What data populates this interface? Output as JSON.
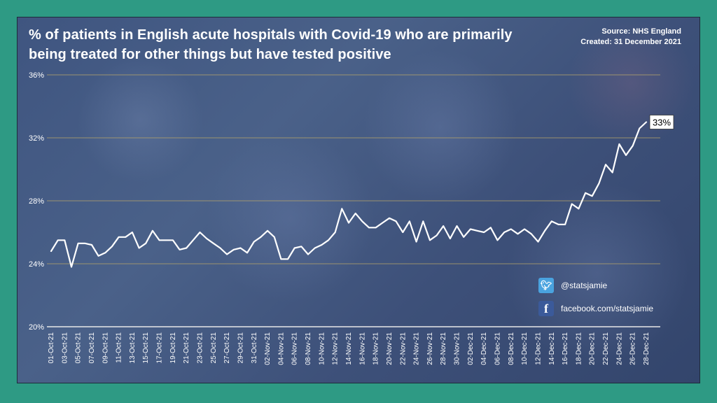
{
  "chart_data": {
    "type": "line",
    "title": "% of patients in English acute hospitals with Covid-19 who are primarily being treated for other things but have tested positive",
    "source": "Source: NHS England",
    "created": "Created: 31 December 2021",
    "xlabel": "",
    "ylabel": "",
    "ylim": [
      20,
      36
    ],
    "yticks": [
      20,
      24,
      28,
      32,
      36
    ],
    "ytick_labels": [
      "20%",
      "24%",
      "28%",
      "32%",
      "36%"
    ],
    "grid": true,
    "x_tick_labels": [
      "01-Oct-21",
      "03-Oct-21",
      "05-Oct-21",
      "07-Oct-21",
      "09-Oct-21",
      "11-Oct-21",
      "13-Oct-21",
      "15-Oct-21",
      "17-Oct-21",
      "19-Oct-21",
      "21-Oct-21",
      "23-Oct-21",
      "25-Oct-21",
      "27-Oct-21",
      "29-Oct-21",
      "31-Oct-21",
      "02-Nov-21",
      "04-Nov-21",
      "06-Nov-21",
      "08-Nov-21",
      "10-Nov-21",
      "12-Nov-21",
      "14-Nov-21",
      "16-Nov-21",
      "18-Nov-21",
      "20-Nov-21",
      "22-Nov-21",
      "24-Nov-21",
      "26-Nov-21",
      "28-Nov-21",
      "30-Nov-21",
      "02-Dec-21",
      "04-Dec-21",
      "06-Dec-21",
      "08-Dec-21",
      "10-Dec-21",
      "12-Dec-21",
      "14-Dec-21",
      "16-Dec-21",
      "18-Dec-21",
      "20-Dec-21",
      "22-Dec-21",
      "24-Dec-21",
      "26-Dec-21",
      "28-Dec-21"
    ],
    "series": [
      {
        "color": "#ffffff",
        "start_date": "01-Oct-21",
        "values": [
          24.8,
          25.5,
          25.5,
          23.8,
          25.3,
          25.3,
          25.2,
          24.5,
          24.7,
          25.1,
          25.7,
          25.7,
          26.0,
          25.0,
          25.3,
          26.1,
          25.5,
          25.5,
          25.5,
          24.9,
          25.0,
          25.5,
          26.0,
          25.6,
          25.3,
          25.0,
          24.6,
          24.9,
          25.0,
          24.7,
          25.4,
          25.7,
          26.1,
          25.7,
          24.3,
          24.3,
          25.0,
          25.1,
          24.6,
          25.0,
          25.2,
          25.5,
          26.0,
          27.5,
          26.6,
          27.2,
          26.7,
          26.3,
          26.3,
          26.6,
          26.9,
          26.7,
          26.0,
          26.7,
          25.4,
          26.7,
          25.5,
          25.8,
          26.4,
          25.6,
          26.4,
          25.7,
          26.2,
          26.1,
          26.0,
          26.3,
          25.5,
          26.0,
          26.2,
          25.9,
          26.2,
          25.9,
          25.4,
          26.1,
          26.7,
          26.5,
          26.5,
          27.8,
          27.5,
          28.5,
          28.3,
          29.1,
          30.3,
          29.8,
          31.6,
          30.9,
          31.5,
          32.6,
          33.0
        ]
      }
    ],
    "end_label": "33%"
  },
  "social": {
    "twitter_icon": "twitter-bird-icon",
    "twitter_handle": "@statsjamie",
    "facebook_icon": "facebook-f-icon",
    "facebook_url": "facebook.com/statsjamie"
  }
}
